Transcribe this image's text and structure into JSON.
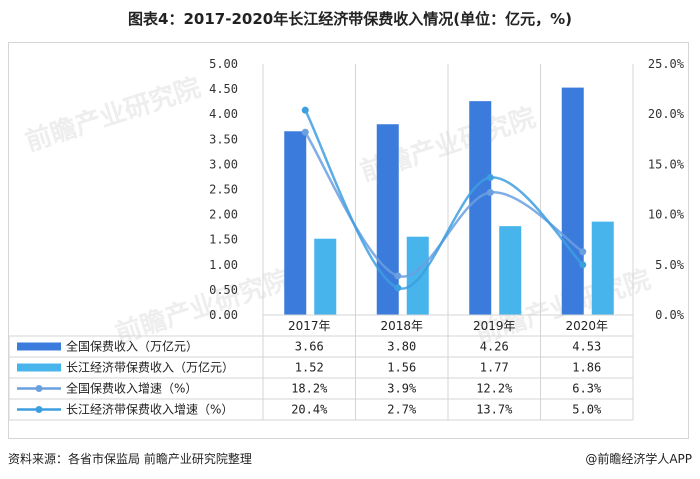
{
  "title": "图表4：2017-2020年长江经济带保费收入情况(单位：亿元，%)",
  "footer": {
    "source": "资料来源：各省市保监局 前瞻产业研究院整理",
    "credit": "@前瞻经济学人APP"
  },
  "watermark": "前瞻产业研究院",
  "chart_data": {
    "type": "bar",
    "title": "图表4：2017-2020年长江经济带保费收入情况(单位：亿元，%)",
    "categories": [
      "2017年",
      "2018年",
      "2019年",
      "2020年"
    ],
    "left_axis": {
      "ylim": [
        0,
        5
      ],
      "ticks": [
        "0.00",
        "0.50",
        "1.00",
        "1.50",
        "2.00",
        "2.50",
        "3.00",
        "3.50",
        "4.00",
        "4.50",
        "5.00"
      ]
    },
    "right_axis": {
      "ylim": [
        0,
        25
      ],
      "ticks": [
        "0.0%",
        "5.0%",
        "10.0%",
        "15.0%",
        "20.0%",
        "25.0%"
      ]
    },
    "series": [
      {
        "name": "全国保费收入（万亿元）",
        "kind": "bar",
        "axis": "left",
        "color": "#3b7bdc",
        "values": [
          3.66,
          3.8,
          4.26,
          4.53
        ],
        "labels": [
          "3.66",
          "3.80",
          "4.26",
          "4.53"
        ]
      },
      {
        "name": "长江经济带保费收入（万亿元）",
        "kind": "bar",
        "axis": "left",
        "color": "#47b4ec",
        "values": [
          1.52,
          1.56,
          1.77,
          1.86
        ],
        "labels": [
          "1.52",
          "1.56",
          "1.77",
          "1.86"
        ]
      },
      {
        "name": "全国保费收入增速（%）",
        "kind": "line",
        "axis": "right",
        "color": "#6a9fe0",
        "values": [
          18.2,
          3.9,
          12.2,
          6.3
        ],
        "labels": [
          "18.2%",
          "3.9%",
          "12.2%",
          "6.3%"
        ]
      },
      {
        "name": "长江经济带保费收入增速（%）",
        "kind": "line",
        "axis": "right",
        "color": "#3d9fe0",
        "values": [
          20.4,
          2.7,
          13.7,
          5.0
        ],
        "labels": [
          "20.4%",
          "2.7%",
          "13.7%",
          "5.0%"
        ]
      }
    ],
    "legend": "table-below"
  }
}
